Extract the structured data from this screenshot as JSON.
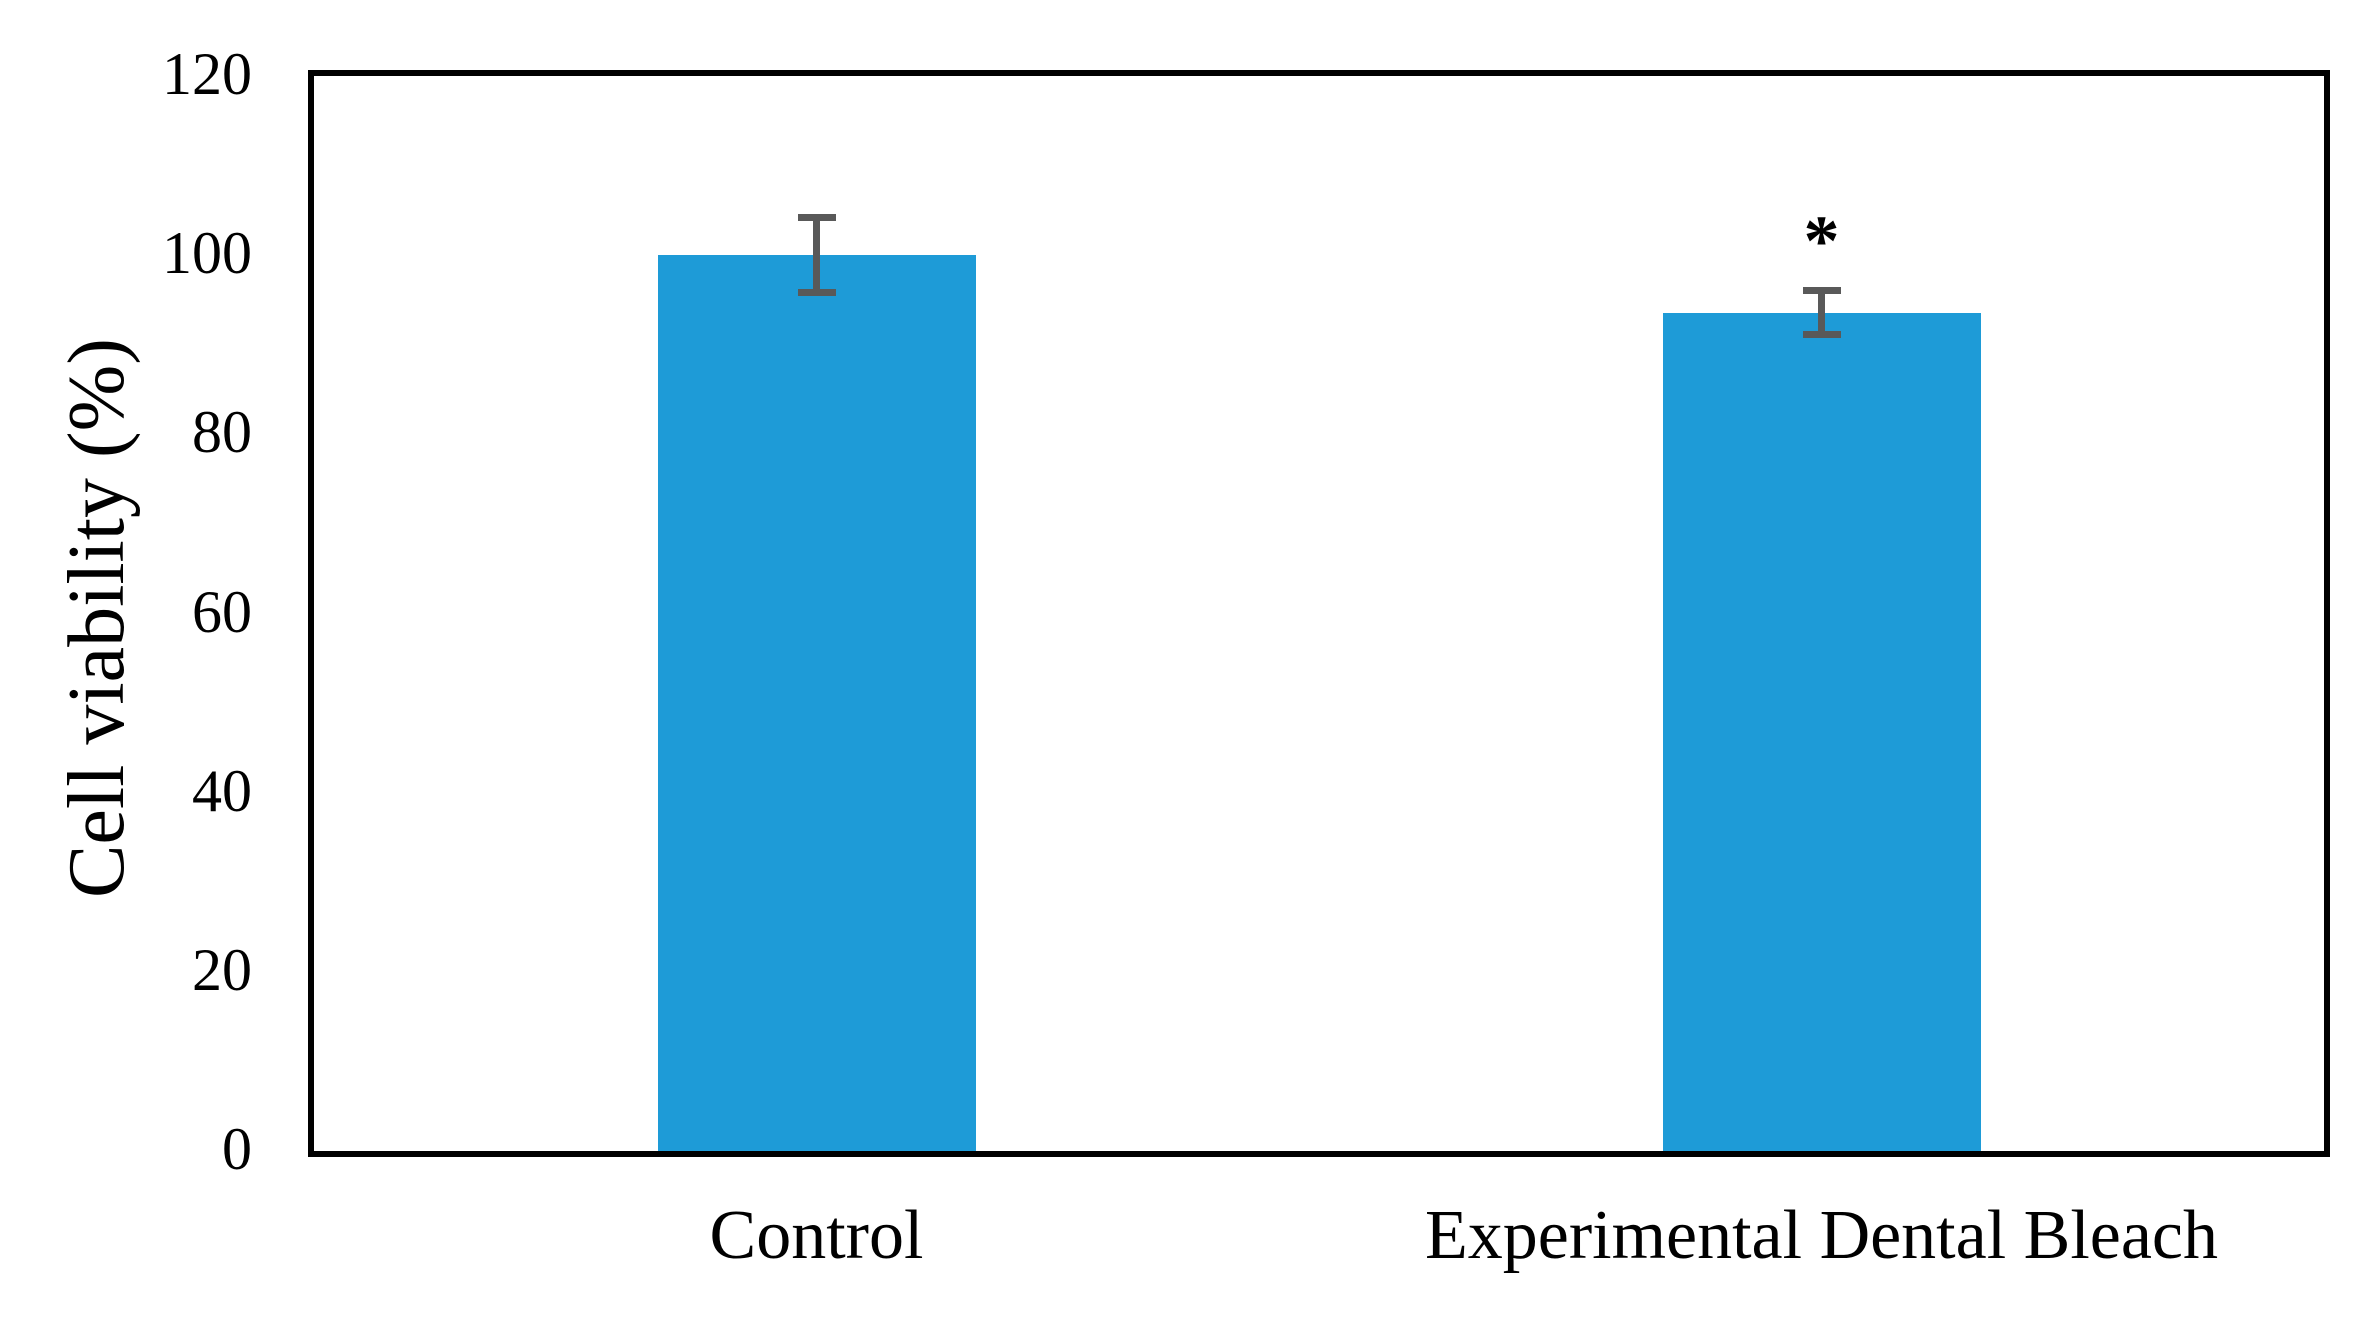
{
  "figure": {
    "background": "#FFFFFF"
  },
  "chart_data": {
    "type": "bar",
    "title": "",
    "xlabel": "",
    "ylabel": "Cell viability (%)",
    "categories": [
      "Control",
      "Experimental Dental Bleach"
    ],
    "values": [
      100,
      93.6
    ],
    "error_bars": [
      4.2,
      2.5
    ],
    "ylim": [
      0,
      120
    ],
    "yticks": [
      0,
      20,
      40,
      60,
      80,
      100,
      120
    ],
    "grid": false,
    "legend_position": "none",
    "bar_color": "#1E9BD7",
    "error_bar_color": "#595959",
    "axis_color": "#000000",
    "annotations": [
      {
        "text": "*",
        "category_index": 1
      }
    ]
  }
}
